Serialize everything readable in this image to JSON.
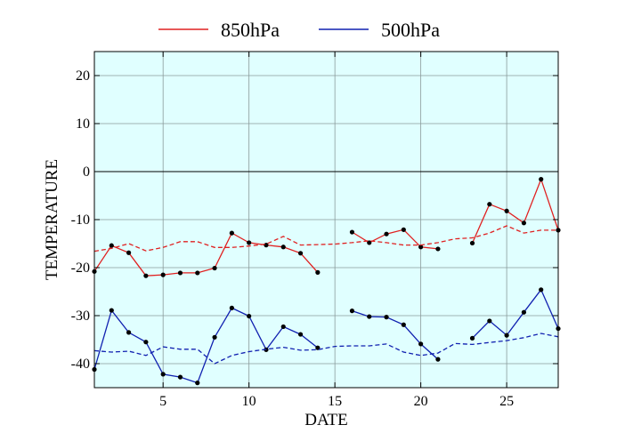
{
  "chart_data": {
    "type": "line",
    "title": "",
    "xlabel": "DATE",
    "ylabel": "TEMPERATURE",
    "xlim": [
      1,
      28
    ],
    "ylim": [
      -45,
      25
    ],
    "x_ticks": [
      5,
      10,
      15,
      20,
      25
    ],
    "y_ticks": [
      -40,
      -30,
      -20,
      -10,
      0,
      10,
      20
    ],
    "grid": true,
    "zero_line": true,
    "legend_position": "top",
    "background_color": "#e0ffff",
    "x": [
      1,
      2,
      3,
      4,
      5,
      6,
      7,
      8,
      9,
      10,
      11,
      12,
      13,
      14,
      15,
      16,
      17,
      18,
      19,
      20,
      21,
      22,
      23,
      24,
      25,
      26,
      27,
      28
    ],
    "series": [
      {
        "name": "850hPa",
        "color": "#e02020",
        "style": "solid",
        "markers": true,
        "values": [
          -20.8,
          -15.4,
          -16.9,
          -21.7,
          -21.5,
          -21.1,
          -21.1,
          -20.1,
          -12.8,
          -14.8,
          -15.3,
          -15.7,
          -17,
          -21,
          null,
          -12.6,
          -14.8,
          -13,
          -12.1,
          -15.7,
          -16.1,
          null,
          -14.9,
          -6.8,
          -8.2,
          -10.7,
          -1.6,
          -12.2
        ]
      },
      {
        "name": "500hPa",
        "color": "#1020b0",
        "style": "solid",
        "markers": true,
        "values": [
          -41.2,
          -28.9,
          -33.5,
          -35.5,
          -42.2,
          -42.8,
          -44,
          -34.5,
          -28.4,
          -30.1,
          -37.1,
          -32.3,
          -33.9,
          -36.7,
          null,
          -29,
          -30.2,
          -30.3,
          -31.9,
          -35.9,
          -39.1,
          null,
          -34.7,
          -31.1,
          -34.1,
          -29.3,
          -24.6,
          -32.7
        ]
      },
      {
        "name": "",
        "color": "#e02020",
        "style": "dashed",
        "markers": false,
        "values": [
          -16.6,
          -16,
          -15,
          -16.5,
          -15.8,
          -14.6,
          -14.6,
          -15.8,
          -15.8,
          -15.5,
          -15.1,
          -13.5,
          -15.3,
          -15.2,
          -15.1,
          -14.8,
          -14.4,
          -14.8,
          -15.3,
          -15.3,
          -14.8,
          -14,
          -13.8,
          -12.8,
          -11.3,
          -12.8,
          -12.2,
          -12.2
        ]
      },
      {
        "name": "",
        "color": "#1020b0",
        "style": "dashed",
        "markers": false,
        "values": [
          -37.3,
          -37.6,
          -37.4,
          -38.3,
          -36.5,
          -37,
          -37,
          -40,
          -38.3,
          -37.5,
          -37,
          -36.6,
          -37.2,
          -37.1,
          -36.4,
          -36.3,
          -36.3,
          -35.9,
          -37.6,
          -38.3,
          -37.8,
          -35.8,
          -36,
          -35.6,
          -35.2,
          -34.6,
          -33.7,
          -34.4
        ]
      }
    ]
  }
}
